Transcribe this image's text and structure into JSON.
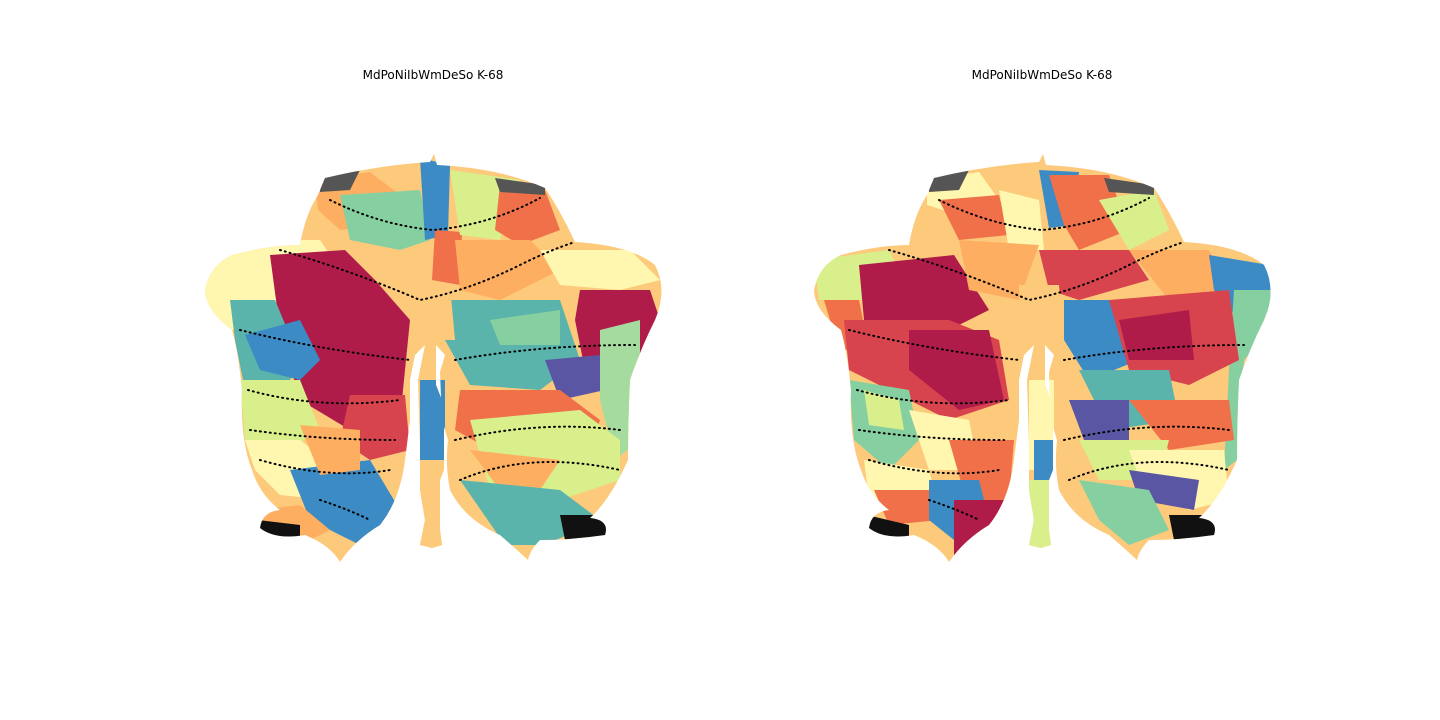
{
  "figure": {
    "panels": [
      {
        "title": "MdPoNiIbWmDeSo K-68"
      },
      {
        "title": "MdPoNiIbWmDeSo K-68"
      }
    ]
  },
  "palette": {
    "dark_red": "#b01c4a",
    "red": "#d8444e",
    "orange_red": "#f0704a",
    "orange": "#fdae61",
    "light_orange": "#fdca7c",
    "pale_yellow": "#fff7b0",
    "yellow_green": "#d9ef8b",
    "light_green": "#a6dba0",
    "mint": "#86cfa0",
    "teal": "#5ab4ac",
    "blue": "#3c8bc4",
    "indigo": "#5a56a4",
    "black": "#111111"
  }
}
